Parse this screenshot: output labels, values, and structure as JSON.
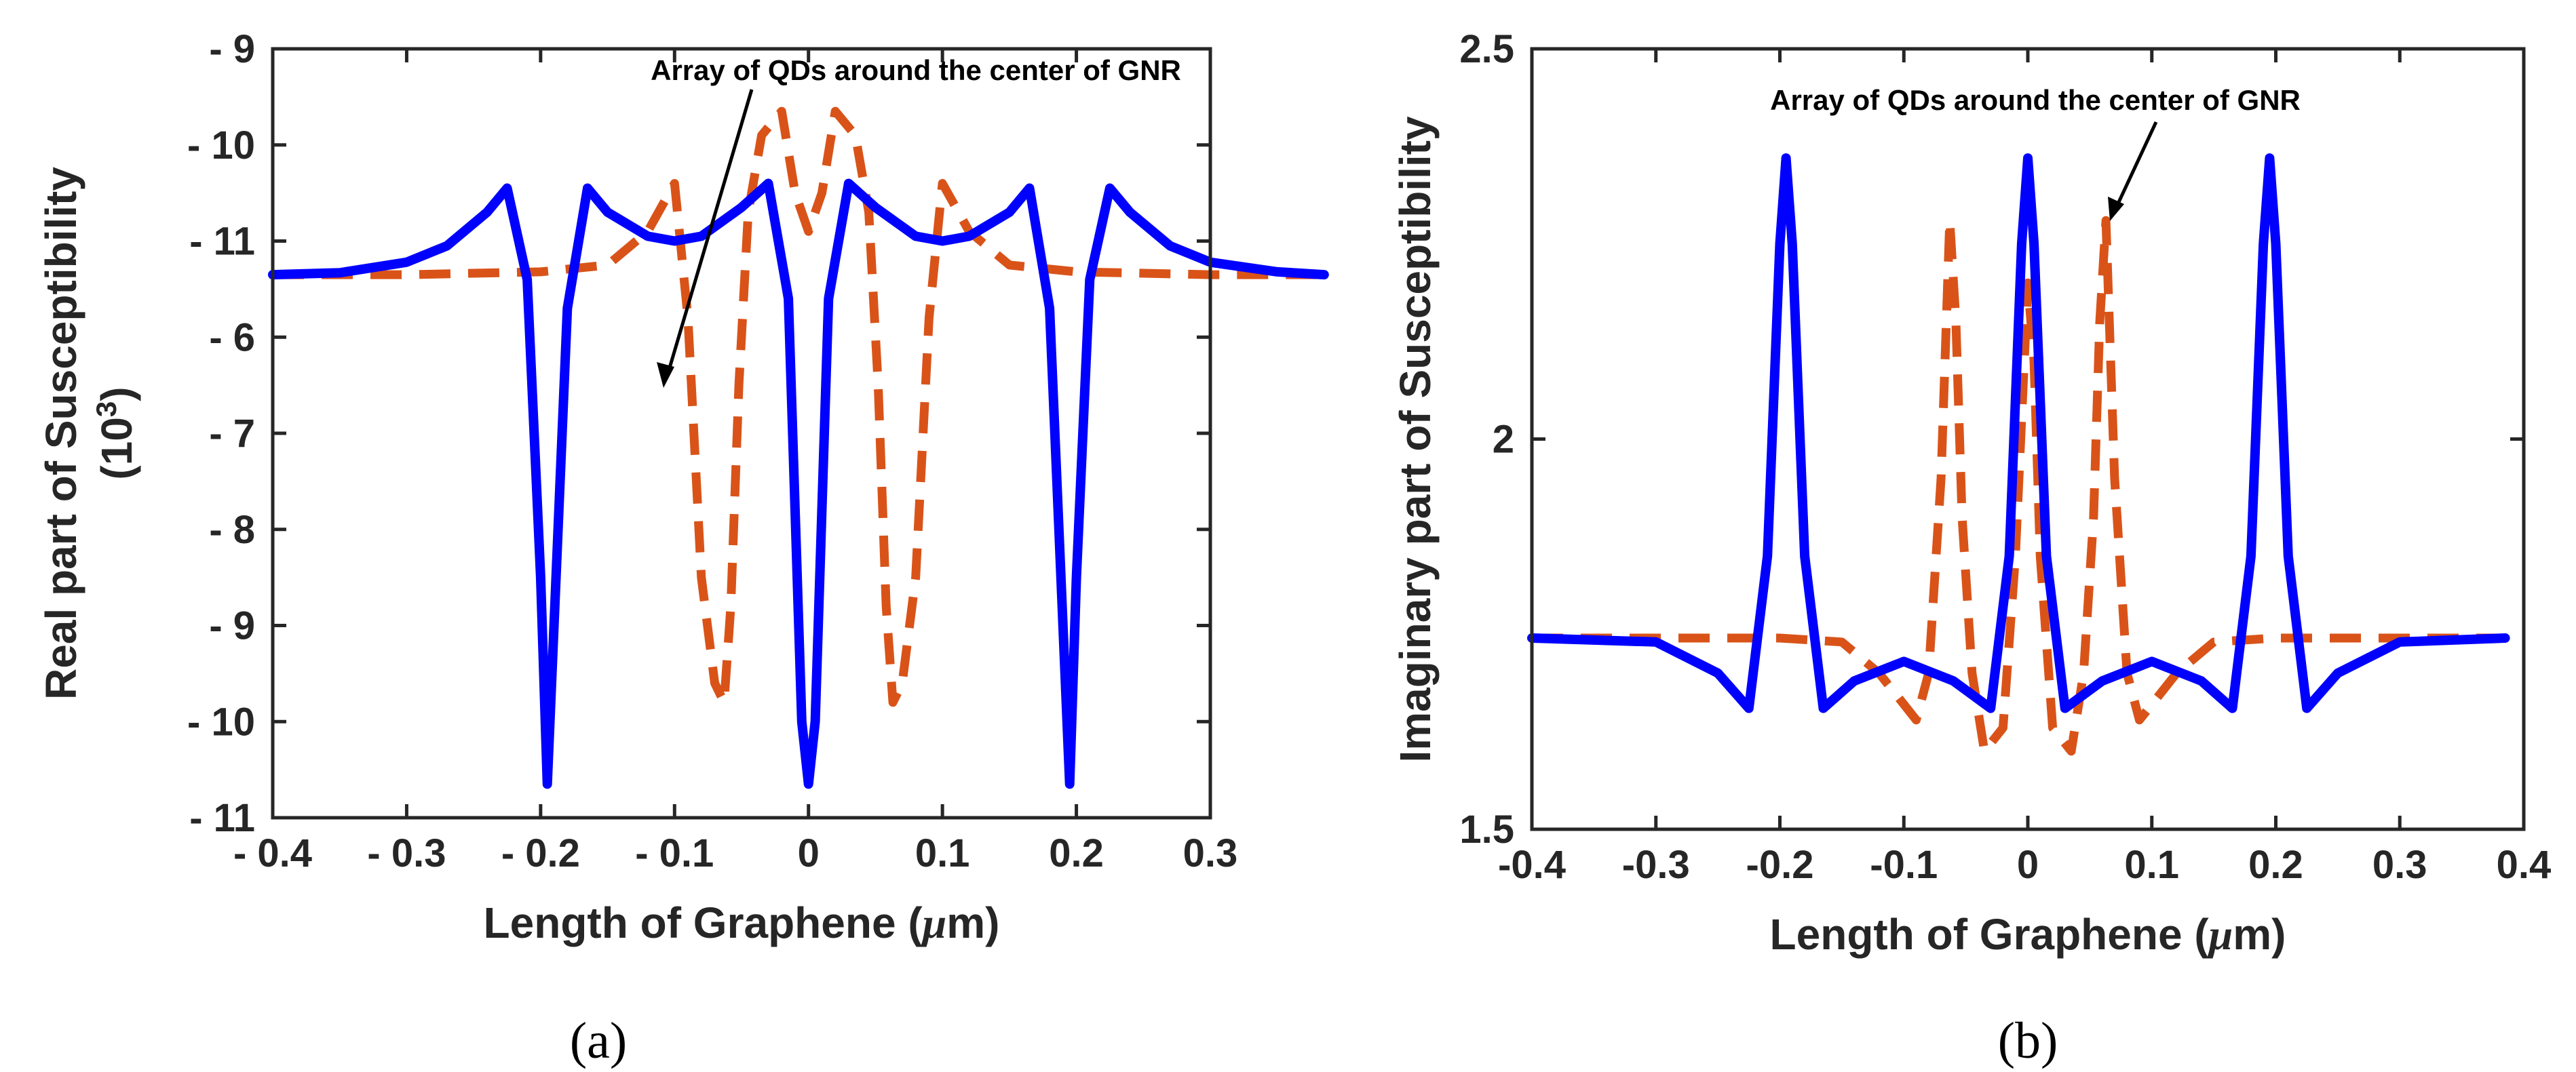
{
  "chart_data": [
    {
      "panel": "(a)",
      "type": "line",
      "xlabel_text": "Length of Graphene (",
      "xlabel_mu": "μ",
      "xlabel_unit": "m)",
      "ylabel_line1": "Real part of Susceptibility",
      "ylabel_line2_base": "(10",
      "ylabel_line2_sup": "3",
      "ylabel_line2_close": ")",
      "xlim": [
        -0.4,
        0.3
      ],
      "ylim": [
        0,
        8
      ],
      "x_ticks": [
        -0.4,
        -0.3,
        -0.2,
        -0.1,
        0,
        0.1,
        0.2,
        0.3
      ],
      "x_tick_labels": [
        "- 0.4",
        "- 0.3",
        "- 0.2",
        "- 0.1",
        "0",
        "0.1",
        "0.2",
        "0.3"
      ],
      "y_ticks": [
        8,
        7,
        6,
        5,
        4,
        3,
        2,
        1,
        0
      ],
      "y_tick_labels": [
        "- 9",
        "- 10",
        "- 11",
        "- 6",
        "- 7",
        "- 8",
        "- 9",
        "- 10",
        "- 11"
      ],
      "annotation": "Array of QDs around the center of GNR",
      "annotation_points_to": [
        -0.055,
        4.6
      ],
      "series": [
        {
          "name": "solid-blue",
          "style": "solid",
          "color": "#0000ff",
          "x": [
            -0.4,
            -0.35,
            -0.3,
            -0.27,
            -0.24,
            -0.225,
            -0.21,
            -0.2,
            -0.195,
            -0.19,
            -0.18,
            -0.165,
            -0.15,
            -0.12,
            -0.1,
            -0.08,
            -0.05,
            -0.03,
            -0.015,
            -0.005,
            0,
            0.005,
            0.015,
            0.03,
            0.05,
            0.08,
            0.1,
            0.12,
            0.15,
            0.165,
            0.18,
            0.19,
            0.195,
            0.2,
            0.21,
            0.225,
            0.24,
            0.27,
            0.3,
            0.35,
            0.385
          ],
          "y": [
            5.65,
            5.67,
            5.78,
            5.95,
            6.3,
            6.55,
            5.6,
            2.5,
            0.35,
            2.0,
            5.3,
            6.55,
            6.3,
            6.05,
            6.0,
            6.05,
            6.35,
            6.6,
            5.4,
            1.0,
            0.35,
            1.0,
            5.4,
            6.6,
            6.35,
            6.05,
            6.0,
            6.05,
            6.3,
            6.55,
            5.3,
            2.0,
            0.35,
            2.5,
            5.6,
            6.55,
            6.3,
            5.95,
            5.78,
            5.68,
            5.65
          ]
        },
        {
          "name": "dashed-red",
          "style": "dashed",
          "color": "#d95319",
          "x": [
            -0.4,
            -0.3,
            -0.2,
            -0.15,
            -0.12,
            -0.1,
            -0.09,
            -0.08,
            -0.07,
            -0.063,
            -0.058,
            -0.052,
            -0.045,
            -0.035,
            -0.02,
            -0.01,
            0,
            0.01,
            0.02,
            0.035,
            0.045,
            0.052,
            0.058,
            0.063,
            0.07,
            0.08,
            0.09,
            0.1,
            0.12,
            0.15,
            0.2,
            0.3,
            0.385
          ],
          "y": [
            5.65,
            5.65,
            5.68,
            5.75,
            6.1,
            6.6,
            5.2,
            2.5,
            1.4,
            1.2,
            2.2,
            4.5,
            6.3,
            7.1,
            7.35,
            6.5,
            6.1,
            6.5,
            7.35,
            7.1,
            6.3,
            4.5,
            2.2,
            1.2,
            1.4,
            2.5,
            5.2,
            6.6,
            6.1,
            5.75,
            5.68,
            5.65,
            5.65
          ]
        }
      ]
    },
    {
      "panel": "(b)",
      "type": "line",
      "xlabel_text": "Length of Graphene (",
      "xlabel_mu": "μ",
      "xlabel_unit": "m)",
      "ylabel_line1": "Imaginary part of Susceptibility",
      "xlim": [
        -0.4,
        0.4
      ],
      "ylim": [
        1.5,
        2.5
      ],
      "x_ticks": [
        -0.4,
        -0.3,
        -0.2,
        -0.1,
        0,
        0.1,
        0.2,
        0.3,
        0.4
      ],
      "x_tick_labels": [
        "-0.4",
        "-0.3",
        "-0.2",
        "-0.1",
        "0",
        "0.1",
        "0.2",
        "0.3",
        "0.4"
      ],
      "y_ticks": [
        1.5,
        2,
        2.5
      ],
      "y_tick_labels": [
        "1.5",
        "2",
        "2.5"
      ],
      "annotation": "Array of QDs around the center of GNR",
      "annotation_points_to": [
        0.065,
        2.28
      ],
      "series": [
        {
          "name": "solid-blue",
          "style": "solid",
          "color": "#0000ff",
          "x": [
            -0.4,
            -0.3,
            -0.25,
            -0.225,
            -0.21,
            -0.2,
            -0.195,
            -0.19,
            -0.18,
            -0.165,
            -0.14,
            -0.1,
            -0.06,
            -0.03,
            -0.015,
            -0.005,
            0,
            0.005,
            0.015,
            0.03,
            0.06,
            0.1,
            0.14,
            0.165,
            0.18,
            0.19,
            0.195,
            0.2,
            0.21,
            0.225,
            0.25,
            0.3,
            0.385
          ],
          "y": [
            1.745,
            1.74,
            1.7,
            1.655,
            1.85,
            2.25,
            2.36,
            2.25,
            1.85,
            1.655,
            1.69,
            1.715,
            1.69,
            1.655,
            1.85,
            2.25,
            2.36,
            2.25,
            1.85,
            1.655,
            1.69,
            1.715,
            1.69,
            1.655,
            1.85,
            2.25,
            2.36,
            2.25,
            1.85,
            1.655,
            1.7,
            1.74,
            1.745
          ]
        },
        {
          "name": "dashed-red",
          "style": "dashed",
          "color": "#d95319",
          "x": [
            -0.4,
            -0.3,
            -0.2,
            -0.15,
            -0.12,
            -0.1,
            -0.09,
            -0.08,
            -0.07,
            -0.063,
            -0.058,
            -0.053,
            -0.045,
            -0.035,
            -0.02,
            -0.01,
            0,
            0.005,
            0.01,
            0.02,
            0.035,
            0.045,
            0.053,
            0.058,
            0.063,
            0.07,
            0.08,
            0.09,
            0.1,
            0.12,
            0.15,
            0.2,
            0.3,
            0.385
          ],
          "y": [
            1.745,
            1.745,
            1.745,
            1.74,
            1.7,
            1.66,
            1.64,
            1.7,
            1.95,
            2.28,
            2.15,
            1.9,
            1.7,
            1.6,
            1.63,
            1.85,
            2.2,
            2.1,
            1.85,
            1.63,
            1.6,
            1.7,
            1.9,
            2.15,
            2.28,
            1.95,
            1.7,
            1.64,
            1.66,
            1.7,
            1.74,
            1.745,
            1.745,
            1.745
          ]
        }
      ]
    }
  ]
}
